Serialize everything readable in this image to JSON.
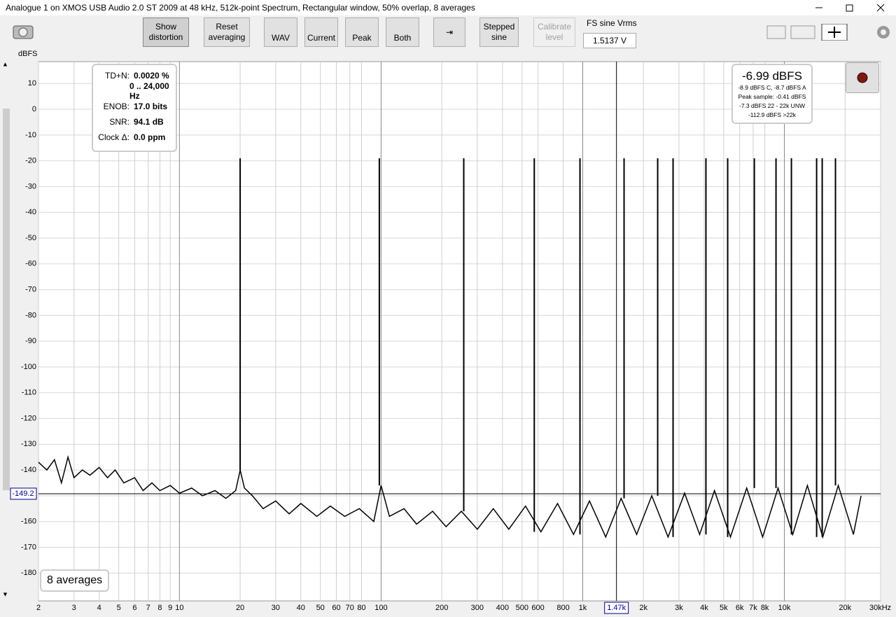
{
  "window": {
    "title": "Analogue 1 on XMOS USB Audio 2.0 ST 2009 at 48 kHz, 512k-point Spectrum, Rectangular window, 50% overlap, 8 averages"
  },
  "toolbar": {
    "buttons": [
      "Show distortion",
      "Reset averaging",
      "WAV",
      "Current",
      "Peak",
      "Both",
      "Stepped sine",
      "Calibrate level"
    ],
    "fs_label": "FS sine Vrms",
    "fs_value": "1.5137 V"
  },
  "info_box": {
    "rows": [
      [
        "TD+N:",
        "0.0020 %"
      ],
      [
        "",
        "0 .. 24,000 Hz"
      ],
      [
        "ENOB:",
        "17.0 bits"
      ],
      [
        "SNR:",
        "94.1 dB"
      ],
      [
        "Clock Δ:",
        "0.0 ppm"
      ]
    ]
  },
  "level_box": {
    "main": "-6.99 dBFS",
    "lines": [
      "-8.9 dBFS C, -8.7 dBFS A",
      "Peak sample: -0.41 dBFS",
      "-7.3 dBFS 22 - 22k UNW",
      "-112.9 dBFS >22k"
    ]
  },
  "averages_label": "8 averages",
  "chart_data": {
    "type": "line",
    "y_label": "dBFS",
    "xlim": [
      2,
      30000
    ],
    "ylim": [
      -190.8,
      18.5
    ],
    "x_log": true,
    "grid": true,
    "yticks": [
      10,
      0,
      -10,
      -20,
      -30,
      -40,
      -50,
      -60,
      -70,
      -80,
      -90,
      -100,
      -110,
      -120,
      -130,
      -140,
      -150,
      -160,
      -170,
      -180
    ],
    "xticks": [
      2,
      3,
      4,
      5,
      6,
      7,
      8,
      9,
      10,
      20,
      30,
      40,
      50,
      60,
      70,
      80,
      100,
      200,
      300,
      400,
      500,
      600,
      800,
      {
        "value": 1000,
        "label": "1k"
      },
      {
        "value": 2000,
        "label": "2k"
      },
      {
        "value": 3000,
        "label": "3k"
      },
      {
        "value": 4000,
        "label": "4k"
      },
      {
        "value": 5000,
        "label": "5k"
      },
      {
        "value": 6000,
        "label": "6k"
      },
      {
        "value": 7000,
        "label": "7k"
      },
      {
        "value": 8000,
        "label": "8k"
      },
      {
        "value": 10000,
        "label": "10k"
      },
      {
        "value": 20000,
        "label": "20k"
      },
      {
        "value": 30000,
        "label": "30kHz"
      }
    ],
    "cursor": {
      "x": {
        "value": 1470,
        "label": "1.47k"
      },
      "y": -149.2
    },
    "series": [
      {
        "name": "noise",
        "color": "#000000",
        "x": [
          2,
          2.2,
          2.4,
          2.6,
          2.8,
          3,
          3.3,
          3.6,
          4,
          4.4,
          4.8,
          5.3,
          6,
          6.6,
          7.3,
          8,
          9,
          10,
          11.5,
          13,
          15,
          17,
          19,
          20,
          21,
          23,
          26,
          30,
          35,
          40,
          48,
          56,
          66,
          78,
          92,
          100,
          110,
          130,
          150,
          180,
          210,
          250,
          300,
          360,
          430,
          520,
          620,
          750,
          900,
          1080,
          1300,
          1550,
          1850,
          2200,
          2650,
          3200,
          3800,
          4500,
          5400,
          6500,
          7800,
          9300,
          11000,
          13000,
          15500,
          18500,
          22000,
          24000
        ],
        "values": [
          -137,
          -140,
          -136,
          -145,
          -135,
          -143,
          -140,
          -142,
          -139,
          -143,
          -140,
          -145,
          -143,
          -148,
          -145,
          -148,
          -146,
          -149,
          -147,
          -150,
          -148,
          -151,
          -148,
          -140,
          -147,
          -150,
          -155,
          -152,
          -157,
          -153,
          -158,
          -154,
          -158,
          -155,
          -160,
          -146,
          -158,
          -155,
          -161,
          -156,
          -162,
          -156,
          -163,
          -155,
          -163,
          -154,
          -164,
          -153,
          -165,
          -152,
          -166,
          -151,
          -165,
          -150,
          -166,
          -149,
          -165,
          -148,
          -166,
          -147,
          -166,
          -147,
          -165,
          -146,
          -166,
          -146,
          -165,
          -150
        ]
      },
      {
        "name": "peaks",
        "color": "#000000",
        "x": [
          20,
          98,
          257,
          575,
          969,
          1603,
          2353,
          2805,
          4083,
          5233,
          7095,
          9087,
          10835,
          14450,
          15400,
          17920
        ],
        "values": [
          -19,
          -19,
          -19,
          -19,
          -19,
          -19,
          -19,
          -19,
          -19,
          -19,
          -19,
          -19,
          -19,
          -19,
          -19,
          -19
        ]
      }
    ]
  }
}
